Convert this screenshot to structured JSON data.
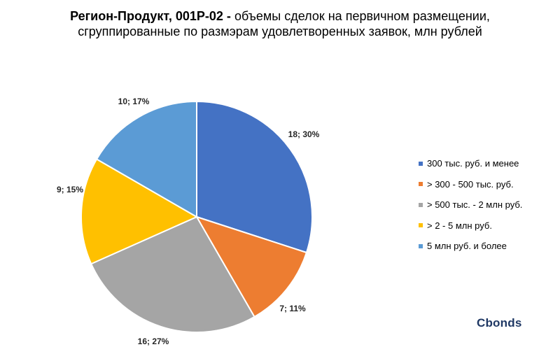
{
  "title": {
    "line1_bold": "Регион-Продукт, 001P-02 -",
    "line1_rest": " объемы сделок на первичном размещении,",
    "line2": "сгруппированные по размэрам удовлетворенных заявок, млн рублей"
  },
  "logo": "Cbonds",
  "chart_data": {
    "type": "pie",
    "title": "Регион-Продукт, 001P-02 - объемы сделок на первичном размещении, сгруппированные по размэрам удовлетворенных заявок, млн рублей",
    "legend_position": "right",
    "slices": [
      {
        "name": "300 тыс. руб. и менее",
        "value": 18,
        "percent": 30,
        "label": "18; 30%",
        "color": "#4472c4"
      },
      {
        "name": "> 300 - 500 тыс. руб.",
        "value": 7,
        "percent": 11,
        "label": "7; 11%",
        "color": "#ed7d31"
      },
      {
        "name": "> 500 тыс. - 2 млн руб.",
        "value": 16,
        "percent": 27,
        "label": "16; 27%",
        "color": "#a5a5a5"
      },
      {
        "name": "> 2 - 5 млн руб.",
        "value": 9,
        "percent": 15,
        "label": "9; 15%",
        "color": "#ffc000"
      },
      {
        "name": "5 млн руб. и более",
        "value": 10,
        "percent": 17,
        "label": "10; 17%",
        "color": "#5b9bd5"
      }
    ]
  }
}
